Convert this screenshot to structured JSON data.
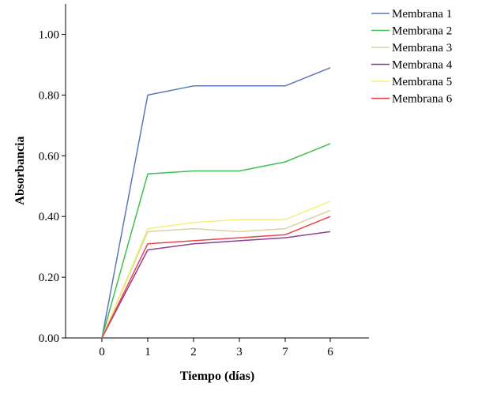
{
  "chart_data": {
    "type": "line",
    "categories": [
      "0",
      "1",
      "2",
      "3",
      "7",
      "6"
    ],
    "xlabel": "Tiempo (días)",
    "ylabel": "Absorbancia",
    "ylim": [
      0,
      1.1
    ],
    "yticks": [
      "0.00",
      "0.20",
      "0.40",
      "0.60",
      "0.80",
      "1.00"
    ],
    "ytick_values": [
      0,
      0.2,
      0.4,
      0.6,
      0.8,
      1.0
    ],
    "grid": false,
    "legend_position": "top-right",
    "series": [
      {
        "name": "Membrana 1",
        "color": "#5b78b8",
        "values": [
          0,
          0.8,
          0.83,
          0.83,
          0.83,
          0.89
        ]
      },
      {
        "name": "Membrana 2",
        "color": "#3fbf4f",
        "values": [
          0,
          0.54,
          0.55,
          0.55,
          0.58,
          0.64
        ]
      },
      {
        "name": "Membrana 3",
        "color": "#d8d2a4",
        "values": [
          0,
          0.35,
          0.36,
          0.35,
          0.36,
          0.42
        ]
      },
      {
        "name": "Membrana 4",
        "color": "#8e3f96",
        "values": [
          0,
          0.29,
          0.31,
          0.32,
          0.33,
          0.35
        ]
      },
      {
        "name": "Membrana 5",
        "color": "#f5f07a",
        "values": [
          0,
          0.36,
          0.38,
          0.39,
          0.39,
          0.45
        ]
      },
      {
        "name": "Membrana 6",
        "color": "#e8464a",
        "values": [
          0,
          0.31,
          0.32,
          0.33,
          0.34,
          0.4
        ]
      }
    ]
  }
}
